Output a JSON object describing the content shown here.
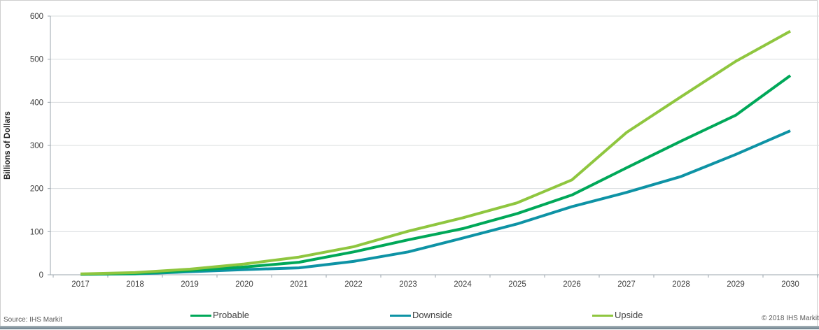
{
  "chart_data": {
    "type": "line",
    "title": "",
    "xlabel": "",
    "ylabel": "Billions of Dollars",
    "ylim": [
      0,
      600
    ],
    "y_tick_step": 100,
    "y_tick_labels": [
      "0",
      "100",
      "200",
      "300",
      "400",
      "500",
      "600"
    ],
    "grid": true,
    "legend_position": "bottom",
    "categories": [
      "2017",
      "2018",
      "2019",
      "2020",
      "2021",
      "2022",
      "2023",
      "2024",
      "2025",
      "2026",
      "2027",
      "2028",
      "2029",
      "2030"
    ],
    "series": [
      {
        "name": "Probable",
        "color": "#00A859",
        "values": [
          1,
          3,
          10,
          18,
          29,
          53,
          81,
          107,
          142,
          185,
          248,
          310,
          370,
          462
        ]
      },
      {
        "name": "Downside",
        "color": "#0E93A5",
        "values": [
          1,
          2,
          7,
          12,
          16,
          31,
          53,
          85,
          118,
          158,
          191,
          228,
          279,
          334
        ]
      },
      {
        "name": "Upside",
        "color": "#8FC63F",
        "values": [
          2,
          5,
          13,
          25,
          41,
          65,
          101,
          132,
          167,
          220,
          330,
          413,
          495,
          565
        ]
      }
    ]
  },
  "colors": {
    "gridline": "#d8dcde",
    "axis_spine": "#9ba5ac",
    "tick_label": "#3f3f3f",
    "axis_title": "#1a1a1a",
    "footer_bar_top": "#a8b4bb",
    "footer_bar_bottom": "#6a7e8a"
  },
  "footer": {
    "source": "Source: IHS Markit",
    "copyright": "© 2018 IHS Markit"
  }
}
